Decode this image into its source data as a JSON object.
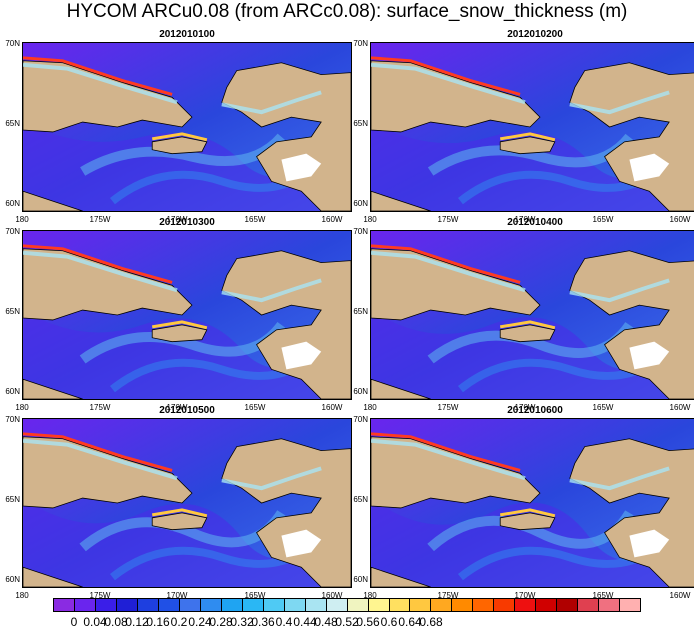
{
  "title": "HYCOM ARCu0.08 (from ARCc0.08): surface_snow_thickness (m)",
  "panels": [
    {
      "date": "2012010100"
    },
    {
      "date": "2012010200"
    },
    {
      "date": "2012010300"
    },
    {
      "date": "2012010400"
    },
    {
      "date": "2012010500"
    },
    {
      "date": "2012010600"
    }
  ],
  "axes": {
    "y_ticks": [
      "70N",
      "65N",
      "60N"
    ],
    "x_ticks": [
      "180",
      "175W",
      "170W",
      "165W",
      "160W"
    ]
  },
  "colorbar": {
    "labels": [
      "0",
      "0.04",
      "0.08",
      "0.12",
      "0.16",
      "0.2",
      "0.24",
      "0.28",
      "0.32",
      "0.36",
      "0.4",
      "0.44",
      "0.48",
      "0.52",
      "0.56",
      "0.6",
      "0.64",
      "0.68"
    ],
    "colors": [
      "#8a2be2",
      "#6a25ee",
      "#3a1ee8",
      "#1f1fd6",
      "#1e3fe0",
      "#2050e6",
      "#3e73ec",
      "#2f8cf0",
      "#1fa4f2",
      "#2ab7f4",
      "#4fcaf4",
      "#7ed8f2",
      "#a9e4f2",
      "#cfeef2",
      "#f0f4c0",
      "#fff590",
      "#ffe060",
      "#ffc840",
      "#ffa820",
      "#ff8a00",
      "#ff6600",
      "#f83a00",
      "#ee1010",
      "#d00000",
      "#b00000",
      "#e04050",
      "#f07080",
      "#ffb0b0"
    ]
  },
  "colors": {
    "land": "#d2b48c",
    "ocean": "#3a57d8",
    "ice_edge": "#ffffff"
  }
}
